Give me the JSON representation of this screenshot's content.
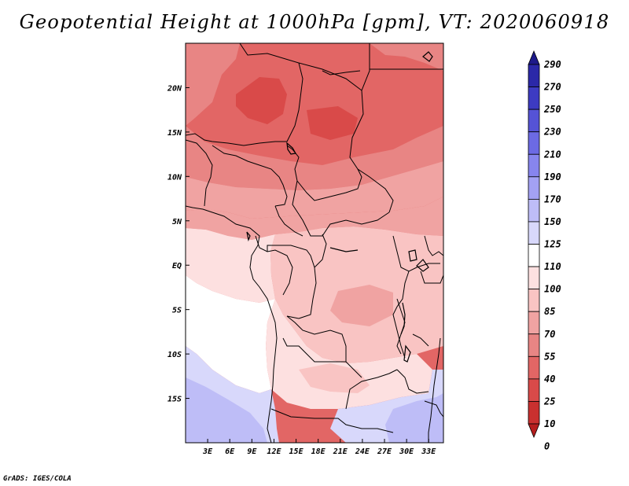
{
  "title": "Geopotential Height at 1000hPa [gpm], VT: 2020060918",
  "credit": "GrADS: IGES/COLA",
  "map": {
    "variable": "Geopotential Height at 1000hPa",
    "units": "gpm",
    "valid_time": "2020060918",
    "lon_range": [
      0,
      35
    ],
    "lat_range": [
      -20,
      25
    ],
    "lon_ticks": [
      {
        "value": 3,
        "label": "3E"
      },
      {
        "value": 6,
        "label": "6E"
      },
      {
        "value": 9,
        "label": "9E"
      },
      {
        "value": 12,
        "label": "12E"
      },
      {
        "value": 15,
        "label": "15E"
      },
      {
        "value": 18,
        "label": "18E"
      },
      {
        "value": 21,
        "label": "21E"
      },
      {
        "value": 24,
        "label": "24E"
      },
      {
        "value": 27,
        "label": "27E"
      },
      {
        "value": 30,
        "label": "30E"
      },
      {
        "value": 33,
        "label": "33E"
      }
    ],
    "lat_ticks": [
      {
        "value": 20,
        "label": "20N"
      },
      {
        "value": 15,
        "label": "15N"
      },
      {
        "value": 10,
        "label": "10N"
      },
      {
        "value": 5,
        "label": "5N"
      },
      {
        "value": 0,
        "label": "EQ"
      },
      {
        "value": -5,
        "label": "5S"
      },
      {
        "value": -10,
        "label": "10S"
      },
      {
        "value": -15,
        "label": "15S"
      }
    ]
  },
  "colorbar": {
    "levels": [
      "290",
      "270",
      "250",
      "230",
      "210",
      "190",
      "170",
      "150",
      "125",
      "110",
      "100",
      "85",
      "70",
      "55",
      "40",
      "25",
      "10",
      "0"
    ],
    "colors": [
      "#1e1a8a",
      "#2b28a8",
      "#3d3bc2",
      "#5553d6",
      "#6c6ae4",
      "#8785ee",
      "#a3a1f4",
      "#bebdf7",
      "#d8d8fb",
      "#ffffff",
      "#fde0e0",
      "#f9c4c3",
      "#f0a3a2",
      "#e88584",
      "#e26665",
      "#d94a49",
      "#c9302f",
      "#b51e1e"
    ]
  },
  "regions": [
    {
      "name": "north-sahara",
      "color": "#e26665"
    },
    {
      "name": "northwest",
      "color": "#e88584"
    },
    {
      "name": "northeast",
      "color": "#e88584"
    },
    {
      "name": "central-north",
      "color": "#e88584"
    },
    {
      "name": "west-africa-coast",
      "color": "#f0a3a2"
    },
    {
      "name": "central-belt",
      "color": "#f0a3a2"
    },
    {
      "name": "congo",
      "color": "#f9c4c3"
    },
    {
      "name": "gabon-coast",
      "color": "#fde0e0"
    },
    {
      "name": "east",
      "color": "#f9c4c3"
    },
    {
      "name": "angola",
      "color": "#fde0e0"
    },
    {
      "name": "zambia",
      "color": "#f9c4c3"
    },
    {
      "name": "atlantic",
      "color": "#ffffff"
    },
    {
      "name": "atlantic-south",
      "color": "#d8d8fb"
    },
    {
      "name": "southwest-ocean",
      "color": "#bebdf7"
    },
    {
      "name": "southeast",
      "color": "#d8d8fb"
    },
    {
      "name": "mozambique",
      "color": "#bebdf7"
    },
    {
      "name": "max-core-1",
      "color": "#d94a49"
    },
    {
      "name": "max-core-2",
      "color": "#d94a49"
    },
    {
      "name": "congo-core",
      "color": "#f0a3a2"
    }
  ]
}
